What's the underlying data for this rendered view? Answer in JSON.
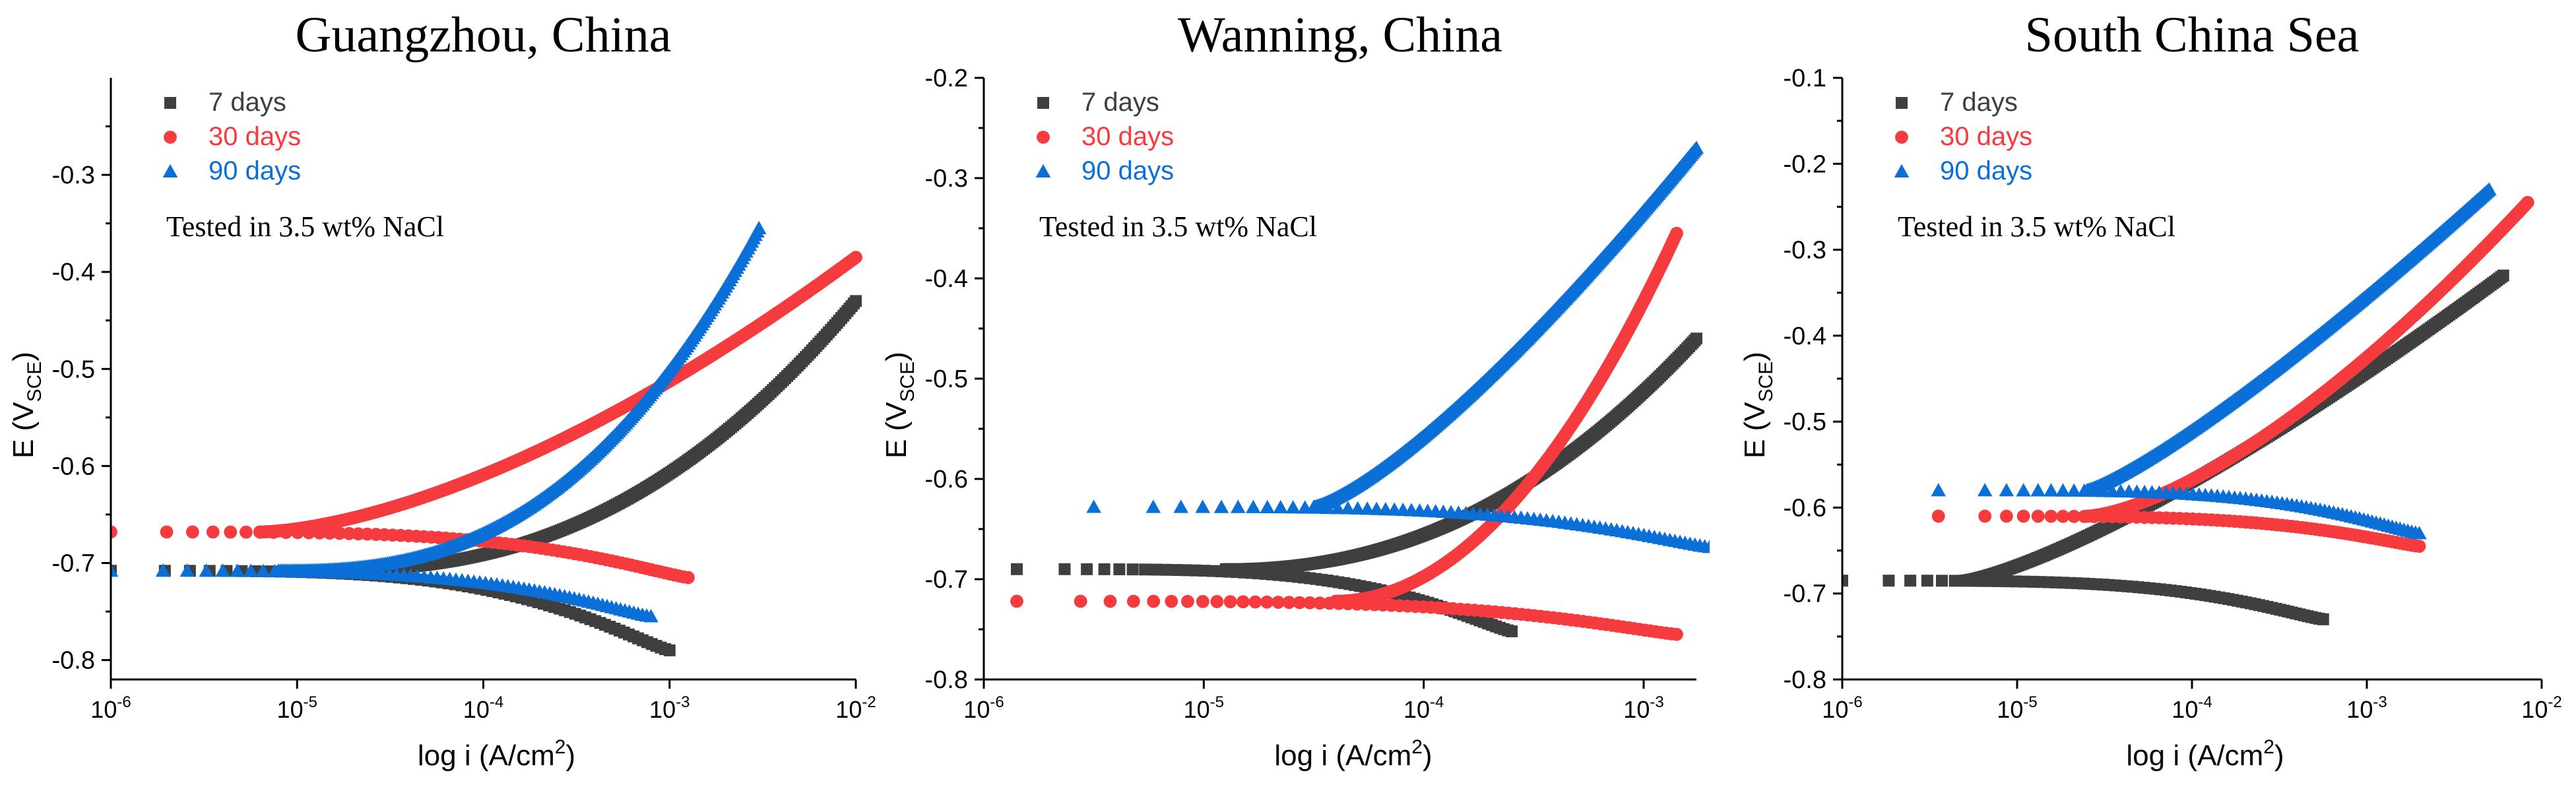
{
  "figure": {
    "description_label": "Potentiodynamic polarization curves"
  },
  "colors": {
    "series_7": "#3f3f3f",
    "series_30": "#f63b3f",
    "series_90": "#0a6fd6",
    "axis": "#000000"
  },
  "legend_labels": [
    "7 days",
    "30 days",
    "90 days"
  ],
  "chart_data": [
    {
      "type": "scatter",
      "title": "Guangzhou, China",
      "xlabel": "log i (A/cm2)",
      "ylabel": "E (VSCE)",
      "xscale": "log",
      "xlim_exp": [
        -6,
        -2
      ],
      "ylim": [
        -0.82,
        -0.2
      ],
      "yticks": [
        -0.8,
        -0.7,
        -0.6,
        -0.5,
        -0.4,
        -0.3
      ],
      "ytick_labels": [
        "-0.8",
        "-0.7",
        "-0.6",
        "-0.5",
        "-0.4",
        "-0.3"
      ],
      "xtick_exps": [
        -6,
        -5,
        -4,
        -3,
        -2
      ],
      "note": "Tested in 3.5 wt% NaCl",
      "legend": [
        "7 days",
        "30 days",
        "90 days"
      ],
      "series": [
        {
          "name": "7 days",
          "marker": "square",
          "color": "#3f3f3f",
          "cathodic": {
            "start_exp": -6.0,
            "end_exp": -3.0,
            "ecorr": -0.708,
            "end_e": -0.79
          },
          "anodic": {
            "start_exp": -4.9,
            "end_exp": -2.0,
            "ecorr": -0.708,
            "end_e": -0.43,
            "curve": 2.4
          }
        },
        {
          "name": "30 days",
          "marker": "circle",
          "color": "#f63b3f",
          "cathodic": {
            "start_exp": -6.0,
            "end_exp": -2.9,
            "ecorr": -0.668,
            "end_e": -0.715
          },
          "anodic": {
            "start_exp": -5.2,
            "end_exp": -2.0,
            "ecorr": -0.668,
            "end_e": -0.385,
            "curve": 1.6
          }
        },
        {
          "name": "90 days",
          "marker": "triangle",
          "color": "#0a6fd6",
          "cathodic": {
            "start_exp": -6.0,
            "end_exp": -3.1,
            "ecorr": -0.708,
            "end_e": -0.755
          },
          "anodic": {
            "start_exp": -5.1,
            "end_exp": -2.52,
            "ecorr": -0.708,
            "end_e": -0.355,
            "curve": 2.6
          }
        }
      ]
    },
    {
      "type": "scatter",
      "title": "Wanning, China",
      "xlabel": "log i (A/cm2)",
      "ylabel": "E (VSCE)",
      "xscale": "log",
      "xlim_exp": [
        -6,
        -2.76
      ],
      "ylim": [
        -0.8,
        -0.2
      ],
      "yticks": [
        -0.8,
        -0.7,
        -0.6,
        -0.5,
        -0.4,
        -0.3,
        -0.2
      ],
      "ytick_labels": [
        "-0.8",
        "-0.7",
        "-0.6",
        "-0.5",
        "-0.4",
        "-0.3",
        "-0.2"
      ],
      "xtick_exps": [
        -6,
        -5,
        -4,
        -3
      ],
      "note": "Tested in 3.5 wt% NaCl",
      "legend": [
        "7 days",
        "30 days",
        "90 days"
      ],
      "series": [
        {
          "name": "7 days",
          "marker": "square",
          "color": "#3f3f3f",
          "cathodic": {
            "start_exp": -5.85,
            "end_exp": -3.6,
            "ecorr": -0.69,
            "end_e": -0.752
          },
          "anodic": {
            "start_exp": -4.9,
            "end_exp": -2.76,
            "ecorr": -0.69,
            "end_e": -0.46,
            "curve": 2.2
          }
        },
        {
          "name": "30 days",
          "marker": "circle",
          "color": "#f63b3f",
          "cathodic": {
            "start_exp": -5.85,
            "end_exp": -2.85,
            "ecorr": -0.722,
            "end_e": -0.755
          },
          "anodic": {
            "start_exp": -4.4,
            "end_exp": -2.85,
            "ecorr": -0.722,
            "end_e": -0.355,
            "curve": 2.0
          }
        },
        {
          "name": "90 days",
          "marker": "triangle",
          "color": "#0a6fd6",
          "cathodic": {
            "start_exp": -5.5,
            "end_exp": -2.7,
            "ecorr": -0.628,
            "end_e": -0.668
          },
          "anodic": {
            "start_exp": -4.5,
            "end_exp": -2.76,
            "ecorr": -0.628,
            "end_e": -0.27,
            "curve": 1.3
          }
        }
      ]
    },
    {
      "type": "scatter",
      "title": "South China Sea",
      "xlabel": "log i (A/cm2)",
      "ylabel": "E (VSCE)",
      "xscale": "log",
      "xlim_exp": [
        -6,
        -2
      ],
      "ylim": [
        -0.8,
        -0.1
      ],
      "yticks": [
        -0.8,
        -0.7,
        -0.6,
        -0.5,
        -0.4,
        -0.3,
        -0.2,
        -0.1
      ],
      "ytick_labels": [
        "-0.8",
        "-0.7",
        "-0.6",
        "-0.5",
        "-0.4",
        "-0.3",
        "-0.2",
        "-0.1"
      ],
      "xtick_exps": [
        -6,
        -5,
        -4,
        -3,
        -2
      ],
      "note": "Tested in 3.5 wt% NaCl",
      "legend": [
        "7 days",
        "30 days",
        "90 days"
      ],
      "series": [
        {
          "name": "7 days",
          "marker": "square",
          "color": "#3f3f3f",
          "cathodic": {
            "start_exp": -6.0,
            "end_exp": -3.25,
            "ecorr": -0.685,
            "end_e": -0.73
          },
          "anodic": {
            "start_exp": -5.3,
            "end_exp": -2.22,
            "ecorr": -0.685,
            "end_e": -0.33,
            "curve": 1.3
          }
        },
        {
          "name": "30 days",
          "marker": "circle",
          "color": "#f63b3f",
          "cathodic": {
            "start_exp": -5.45,
            "end_exp": -2.7,
            "ecorr": -0.61,
            "end_e": -0.645
          },
          "anodic": {
            "start_exp": -4.6,
            "end_exp": -2.08,
            "ecorr": -0.61,
            "end_e": -0.245,
            "curve": 1.5
          }
        },
        {
          "name": "90 days",
          "marker": "triangle",
          "color": "#0a6fd6",
          "cathodic": {
            "start_exp": -5.45,
            "end_exp": -2.7,
            "ecorr": -0.58,
            "end_e": -0.63
          },
          "anodic": {
            "start_exp": -4.6,
            "end_exp": -2.3,
            "ecorr": -0.58,
            "end_e": -0.23,
            "curve": 1.2
          }
        }
      ]
    }
  ]
}
